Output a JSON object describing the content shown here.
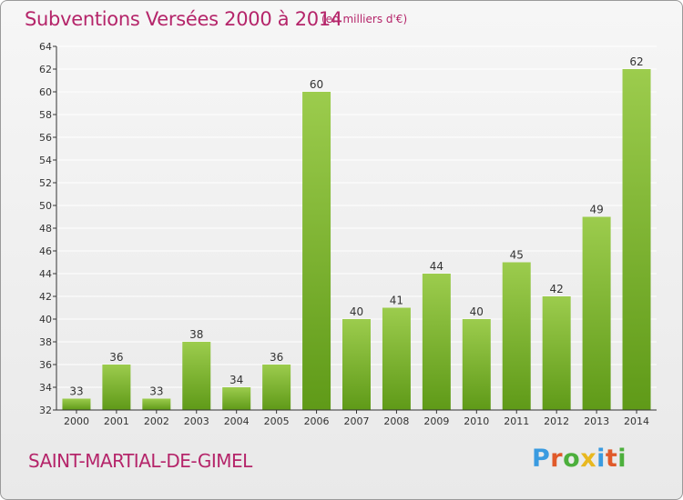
{
  "header": {
    "title": "Subventions Versées 2000 à 2014",
    "unit": "(en milliers d'€)"
  },
  "footer": {
    "commune": "SAINT-MARTIAL-DE-GIMEL",
    "logo": {
      "text": "Proxiti",
      "colors": [
        "#3a9be0",
        "#e05a2a",
        "#4caf3c",
        "#e8b820",
        "#3a9be0",
        "#e05a2a",
        "#4caf3c"
      ]
    }
  },
  "colors": {
    "accent": "#b5256a",
    "bar_top": "#9ccc4d",
    "bar_bottom": "#5f9a18",
    "grid": "#ffffff",
    "axis": "#333333"
  },
  "chart_data": {
    "type": "bar",
    "categories": [
      "2000",
      "2001",
      "2002",
      "2003",
      "2004",
      "2005",
      "2006",
      "2007",
      "2008",
      "2009",
      "2010",
      "2011",
      "2012",
      "2013",
      "2014"
    ],
    "values": [
      33,
      36,
      33,
      38,
      34,
      36,
      60,
      40,
      41,
      44,
      40,
      45,
      42,
      49,
      62
    ],
    "ylim": [
      32,
      64
    ],
    "yticks": [
      32,
      34,
      36,
      38,
      40,
      42,
      44,
      46,
      48,
      50,
      52,
      54,
      56,
      58,
      60,
      62,
      64
    ],
    "grid": true,
    "data_labels": true
  }
}
